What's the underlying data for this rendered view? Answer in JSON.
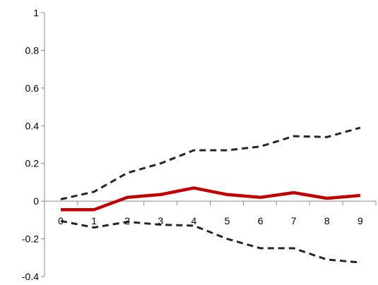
{
  "chart_data": {
    "type": "line",
    "title": "",
    "xlabel": "",
    "ylabel": "",
    "x": [
      0,
      1,
      2,
      3,
      4,
      5,
      6,
      7,
      8,
      9
    ],
    "ylim": [
      -0.4,
      1
    ],
    "yticks": [
      -0.4,
      -0.2,
      0,
      0.2,
      0.4,
      0.6,
      0.8,
      1
    ],
    "ytick_labels": [
      "-0.4",
      "-0.2",
      "0",
      "0.2",
      "0.4",
      "0.6",
      "0.8",
      "1"
    ],
    "xtick_labels": [
      "0",
      "1",
      "2",
      "3",
      "4",
      "5",
      "6",
      "7",
      "8",
      "9"
    ],
    "grid": false,
    "legend": "none",
    "series": [
      {
        "values": [
          0.01,
          0.05,
          0.15,
          0.2,
          0.27,
          0.27,
          0.29,
          0.345,
          0.34,
          0.39
        ],
        "color": "#262626",
        "style": "dashed"
      },
      {
        "values": [
          -0.045,
          -0.045,
          0.02,
          0.035,
          0.07,
          0.035,
          0.02,
          0.045,
          0.015,
          0.03
        ],
        "color": "#c00000",
        "style": "solid"
      },
      {
        "values": [
          -0.105,
          -0.14,
          -0.11,
          -0.125,
          -0.13,
          -0.2,
          -0.25,
          -0.25,
          -0.31,
          -0.325
        ],
        "color": "#262626",
        "style": "dashed"
      }
    ]
  }
}
